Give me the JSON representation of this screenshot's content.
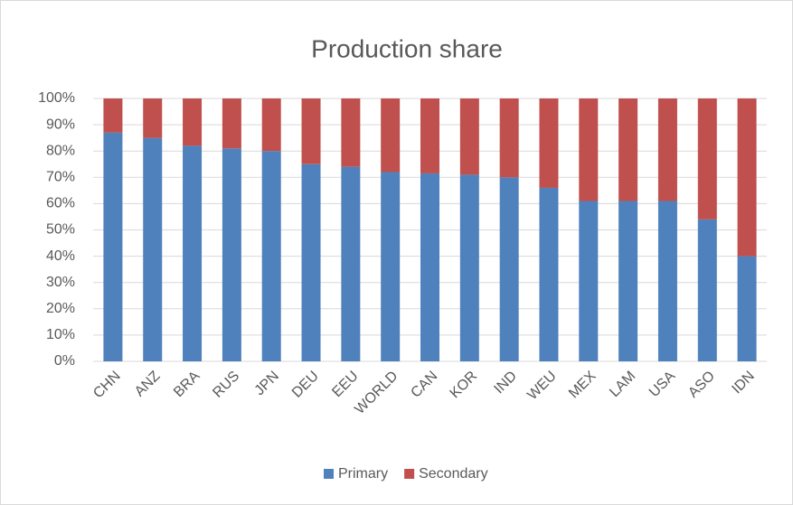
{
  "chart_data": {
    "type": "stacked_bar",
    "title": "Production share",
    "categories": [
      "CHN",
      "ANZ",
      "BRA",
      "RUS",
      "JPN",
      "DEU",
      "EEU",
      "WORLD",
      "CAN",
      "KOR",
      "IND",
      "WEU",
      "MEX",
      "LAM",
      "USA",
      "ASO",
      "IDN"
    ],
    "series": [
      {
        "name": "Primary",
        "color": "#4f81bd",
        "values": [
          87,
          85,
          82,
          81,
          80,
          75,
          74,
          72,
          71.5,
          71,
          70,
          66,
          61,
          61,
          61,
          54,
          40
        ]
      },
      {
        "name": "Secondary",
        "color": "#c0504d",
        "values": [
          13,
          15,
          18,
          19,
          20,
          25,
          26,
          28,
          28.5,
          29,
          30,
          34,
          39,
          39,
          39,
          46,
          60
        ]
      }
    ],
    "ylim": [
      0,
      100
    ],
    "yticks": [
      {
        "value": 0,
        "label": "0%"
      },
      {
        "value": 10,
        "label": "10%"
      },
      {
        "value": 20,
        "label": "20%"
      },
      {
        "value": 30,
        "label": "30%"
      },
      {
        "value": 40,
        "label": "40%"
      },
      {
        "value": 50,
        "label": "50%"
      },
      {
        "value": 60,
        "label": "60%"
      },
      {
        "value": 70,
        "label": "70%"
      },
      {
        "value": 80,
        "label": "80%"
      },
      {
        "value": 90,
        "label": "90%"
      },
      {
        "value": 100,
        "label": "100%"
      }
    ],
    "grid": true,
    "legend": "bottom"
  }
}
